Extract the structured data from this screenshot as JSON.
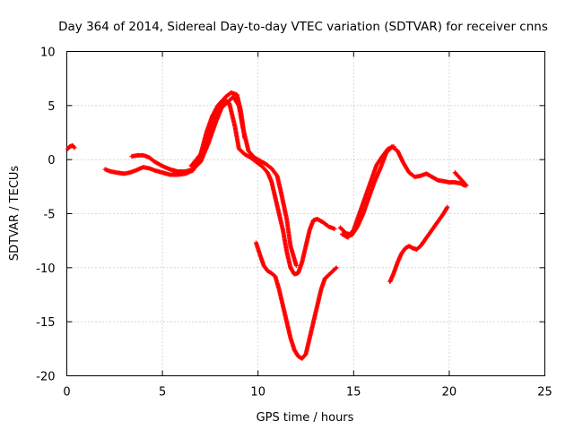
{
  "chart_data": {
    "type": "scatter",
    "title": "Day 364 of 2014, Sidereal Day-to-day VTEC variation (SDTVAR) for receiver cnns",
    "xlabel": "GPS time / hours",
    "ylabel": "SDTVAR / TECUs",
    "xlim": [
      0,
      25
    ],
    "ylim": [
      -20,
      10
    ],
    "xticks": [
      "0",
      "5",
      "10",
      "15",
      "20",
      "25"
    ],
    "yticks": [
      "-20",
      "-15",
      "-10",
      "-5",
      "0",
      "5",
      "10"
    ],
    "grid": true,
    "marker": "+",
    "color": "#ff0000",
    "series": [
      {
        "name": "segment-1",
        "x": [
          0.05,
          0.15,
          0.3,
          0.4
        ],
        "y": [
          1.0,
          1.2,
          1.3,
          1.1
        ]
      },
      {
        "name": "segment-2",
        "x": [
          2.0,
          2.3,
          2.6,
          3.0,
          3.3,
          3.6,
          4.0,
          4.3,
          4.6,
          5.0,
          5.4,
          5.8,
          6.2,
          6.6,
          7.0,
          7.3,
          7.6,
          7.9,
          8.2,
          8.5,
          8.8,
          9.0,
          9.3,
          9.6,
          9.9,
          10.2,
          10.5,
          10.7,
          10.9,
          11.1,
          11.3,
          11.5,
          11.7,
          11.9,
          12.1,
          12.3,
          12.5,
          12.7,
          12.9,
          13.1,
          13.4,
          13.7,
          14.0
        ],
        "y": [
          -0.9,
          -1.1,
          -1.2,
          -1.3,
          -1.2,
          -1.0,
          -0.7,
          -0.8,
          -1.0,
          -1.2,
          -1.4,
          -1.4,
          -1.3,
          -1.0,
          0.5,
          2.5,
          4.0,
          5.0,
          5.6,
          5.2,
          3.0,
          1.0,
          0.5,
          0.2,
          -0.2,
          -0.6,
          -1.2,
          -2.0,
          -3.5,
          -5.0,
          -6.5,
          -8.5,
          -10.0,
          -10.6,
          -10.5,
          -9.5,
          -8.0,
          -6.5,
          -5.6,
          -5.5,
          -5.8,
          -6.2,
          -6.4
        ]
      },
      {
        "name": "segment-3",
        "x": [
          3.4,
          3.7,
          4.0,
          4.3,
          4.6,
          5.0,
          5.4,
          5.8,
          6.2,
          6.6,
          7.0,
          7.4,
          7.8,
          8.1,
          8.4,
          8.7,
          9.0,
          9.2,
          9.5,
          9.8,
          10.1,
          10.4,
          10.7,
          11.0,
          11.2,
          11.5,
          11.7,
          12.0
        ],
        "y": [
          0.3,
          0.4,
          0.4,
          0.2,
          -0.2,
          -0.6,
          -0.9,
          -1.1,
          -1.1,
          -0.9,
          -0.2,
          1.5,
          3.5,
          4.8,
          5.3,
          5.8,
          5.0,
          3.0,
          0.8,
          0.2,
          -0.1,
          -0.4,
          -0.8,
          -1.5,
          -3.0,
          -5.5,
          -8.0,
          -9.8
        ]
      },
      {
        "name": "segment-4",
        "x": [
          6.5,
          7.0,
          7.5,
          8.0,
          8.3,
          8.6,
          8.9,
          9.1,
          9.3
        ],
        "y": [
          -0.6,
          0.5,
          2.8,
          4.8,
          5.8,
          6.2,
          6.0,
          4.5,
          2.0
        ]
      },
      {
        "name": "segment-5",
        "x": [
          9.9,
          10.1,
          10.3,
          10.5,
          10.7,
          10.9,
          11.1,
          11.3,
          11.5,
          11.7,
          11.9,
          12.1,
          12.3,
          12.5,
          12.7,
          12.9,
          13.1,
          13.3,
          13.5,
          13.8,
          14.1
        ],
        "y": [
          -7.7,
          -8.8,
          -9.8,
          -10.3,
          -10.5,
          -10.8,
          -12.0,
          -13.5,
          -15.0,
          -16.5,
          -17.6,
          -18.2,
          -18.4,
          -18.0,
          -16.5,
          -15.0,
          -13.5,
          -12.0,
          -11.0,
          -10.5,
          -10.0
        ]
      },
      {
        "name": "segment-6",
        "x": [
          14.3,
          14.6,
          14.9,
          15.2,
          15.5,
          15.8,
          16.1,
          16.4,
          16.7,
          17.0,
          17.3,
          17.6,
          17.9,
          18.2,
          18.5,
          18.8,
          19.1,
          19.4,
          19.7,
          20.0,
          20.3,
          20.6,
          20.8
        ],
        "y": [
          -6.3,
          -6.8,
          -7.0,
          -6.2,
          -5.0,
          -3.5,
          -2.0,
          -0.8,
          0.6,
          1.2,
          0.8,
          -0.3,
          -1.2,
          -1.6,
          -1.5,
          -1.3,
          -1.6,
          -1.9,
          -2.0,
          -2.1,
          -2.1,
          -2.2,
          -2.4
        ]
      },
      {
        "name": "segment-7",
        "x": [
          14.4,
          14.7,
          15.0,
          15.3,
          15.6,
          15.9,
          16.2,
          16.5,
          16.8,
          17.1
        ],
        "y": [
          -6.9,
          -7.2,
          -6.5,
          -5.0,
          -3.5,
          -2.0,
          -0.5,
          0.3,
          1.0,
          1.2
        ]
      },
      {
        "name": "segment-8",
        "x": [
          20.3,
          20.5,
          20.7,
          20.9
        ],
        "y": [
          -1.2,
          -1.6,
          -2.0,
          -2.4
        ]
      },
      {
        "name": "segment-9",
        "x": [
          16.9,
          17.1,
          17.3,
          17.5,
          17.7,
          17.9,
          18.1,
          18.3,
          18.5,
          18.7,
          18.9,
          19.1,
          19.3,
          19.5,
          19.7,
          19.9
        ],
        "y": [
          -11.3,
          -10.5,
          -9.5,
          -8.7,
          -8.2,
          -8.0,
          -8.2,
          -8.3,
          -8.0,
          -7.5,
          -7.0,
          -6.5,
          -6.0,
          -5.5,
          -5.0,
          -4.4
        ]
      }
    ]
  }
}
